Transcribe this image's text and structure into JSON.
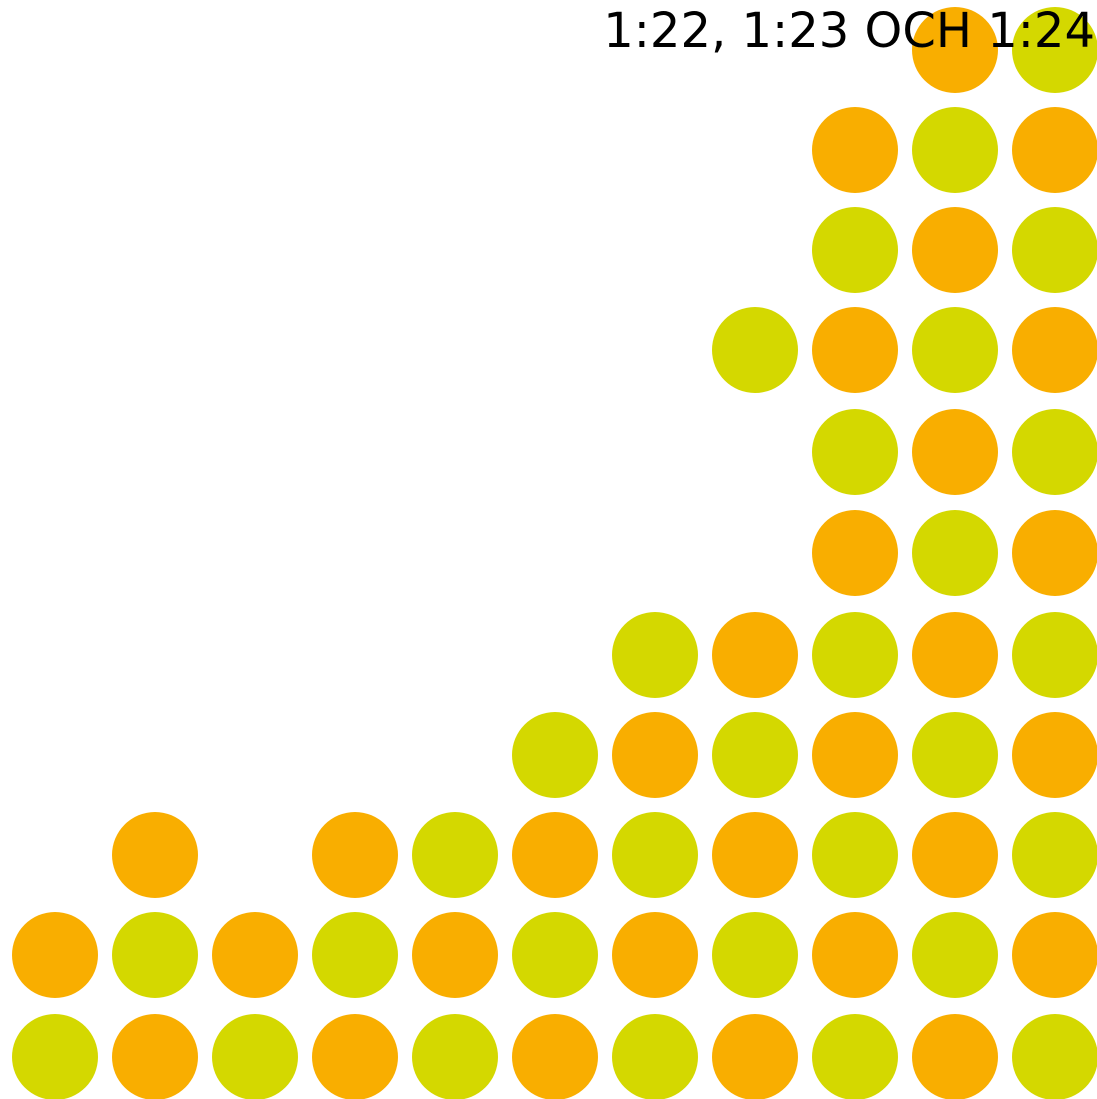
{
  "title": "1:22, 1:23 OCH 1:24"
}
